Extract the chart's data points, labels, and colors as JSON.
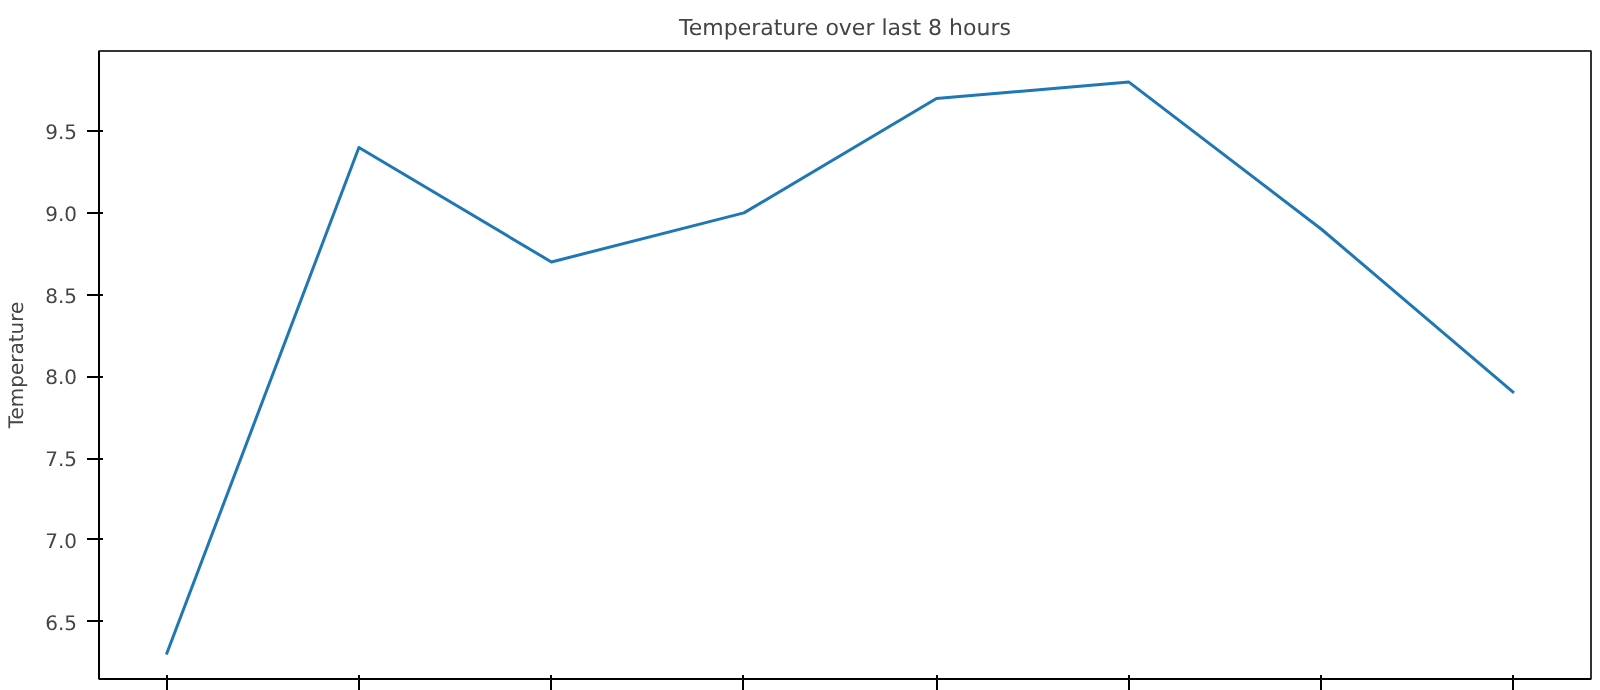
{
  "chart_data": {
    "type": "line",
    "title": "Temperature over last 8 hours",
    "ylabel": "Temperature",
    "categories": [
      null,
      null,
      null,
      null,
      null,
      null,
      null,
      null
    ],
    "series": [
      {
        "color": "#1f77b4",
        "values": [
          6.3,
          9.4,
          8.7,
          9.0,
          9.7,
          9.8,
          8.9,
          7.9
        ]
      }
    ],
    "ylim": [
      6.15,
      9.99
    ],
    "yticks": [
      6.5,
      {
        "value": 7,
        "label": "7.0"
      },
      7.5,
      {
        "value": 8,
        "label": "8.0"
      },
      8.5,
      {
        "value": 9,
        "label": "9.0"
      },
      9.5
    ],
    "grid": false,
    "tick_labels": "y"
  }
}
